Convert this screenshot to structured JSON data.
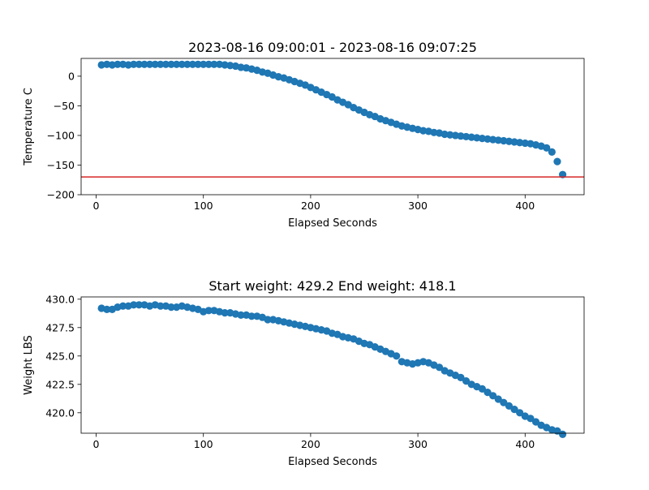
{
  "chart_data": [
    {
      "type": "scatter",
      "title": "2023-08-16 09:00:01 - 2023-08-16 09:07:25",
      "xlabel": "Elapsed Seconds",
      "ylabel": "Temperature C",
      "xlim": [
        -14,
        455
      ],
      "ylim": [
        -200,
        30
      ],
      "xticks": [
        0,
        100,
        200,
        300,
        400
      ],
      "xtick_labels": [
        "0",
        "100",
        "200",
        "300",
        "400"
      ],
      "yticks": [
        -200,
        -150,
        -100,
        -50,
        0
      ],
      "ytick_labels": [
        "−200",
        "−150",
        "−100",
        "−50",
        "0"
      ],
      "marker_color": "#1f77b4",
      "reference_line": {
        "y": -170,
        "color": "#d62728"
      },
      "points": [
        [
          5,
          19
        ],
        [
          10,
          20
        ],
        [
          15,
          19
        ],
        [
          20,
          20
        ],
        [
          25,
          20
        ],
        [
          30,
          19
        ],
        [
          35,
          20
        ],
        [
          40,
          20
        ],
        [
          45,
          20
        ],
        [
          50,
          20
        ],
        [
          55,
          20
        ],
        [
          60,
          20
        ],
        [
          65,
          20
        ],
        [
          70,
          20
        ],
        [
          75,
          20
        ],
        [
          80,
          20
        ],
        [
          85,
          20
        ],
        [
          90,
          20
        ],
        [
          95,
          20
        ],
        [
          100,
          20
        ],
        [
          105,
          20
        ],
        [
          110,
          20
        ],
        [
          115,
          20
        ],
        [
          120,
          19
        ],
        [
          125,
          18
        ],
        [
          130,
          17
        ],
        [
          135,
          15
        ],
        [
          140,
          14
        ],
        [
          145,
          12
        ],
        [
          150,
          10
        ],
        [
          155,
          7
        ],
        [
          160,
          5
        ],
        [
          165,
          2
        ],
        [
          170,
          -1
        ],
        [
          175,
          -3
        ],
        [
          180,
          -6
        ],
        [
          185,
          -9
        ],
        [
          190,
          -12
        ],
        [
          195,
          -15
        ],
        [
          200,
          -19
        ],
        [
          205,
          -23
        ],
        [
          210,
          -27
        ],
        [
          215,
          -31
        ],
        [
          220,
          -35
        ],
        [
          225,
          -40
        ],
        [
          230,
          -44
        ],
        [
          235,
          -48
        ],
        [
          240,
          -53
        ],
        [
          245,
          -57
        ],
        [
          250,
          -61
        ],
        [
          255,
          -65
        ],
        [
          260,
          -68
        ],
        [
          265,
          -72
        ],
        [
          270,
          -75
        ],
        [
          275,
          -78
        ],
        [
          280,
          -81
        ],
        [
          285,
          -84
        ],
        [
          290,
          -86
        ],
        [
          295,
          -88
        ],
        [
          300,
          -90
        ],
        [
          305,
          -92
        ],
        [
          310,
          -93
        ],
        [
          315,
          -95
        ],
        [
          320,
          -96
        ],
        [
          325,
          -98
        ],
        [
          330,
          -99
        ],
        [
          335,
          -100
        ],
        [
          340,
          -101
        ],
        [
          345,
          -102
        ],
        [
          350,
          -103
        ],
        [
          355,
          -104
        ],
        [
          360,
          -105
        ],
        [
          365,
          -106
        ],
        [
          370,
          -107
        ],
        [
          375,
          -108
        ],
        [
          380,
          -109
        ],
        [
          385,
          -110
        ],
        [
          390,
          -111
        ],
        [
          395,
          -112
        ],
        [
          400,
          -113
        ],
        [
          405,
          -114
        ],
        [
          410,
          -116
        ],
        [
          415,
          -118
        ],
        [
          420,
          -121
        ],
        [
          425,
          -128
        ],
        [
          430,
          -144
        ],
        [
          435,
          -166
        ]
      ]
    },
    {
      "type": "scatter",
      "title": "Start weight: 429.2 End weight: 418.1",
      "xlabel": "Elapsed Seconds",
      "ylabel": "Weight LBS",
      "xlim": [
        -14,
        455
      ],
      "ylim": [
        418.2,
        430.2
      ],
      "xticks": [
        0,
        100,
        200,
        300,
        400
      ],
      "xtick_labels": [
        "0",
        "100",
        "200",
        "300",
        "400"
      ],
      "yticks": [
        420.0,
        422.5,
        425.0,
        427.5,
        430.0
      ],
      "ytick_labels": [
        "420.0",
        "422.5",
        "425.0",
        "427.5",
        "430.0"
      ],
      "marker_color": "#1f77b4",
      "points": [
        [
          5,
          429.2
        ],
        [
          10,
          429.1
        ],
        [
          15,
          429.1
        ],
        [
          20,
          429.3
        ],
        [
          25,
          429.4
        ],
        [
          30,
          429.4
        ],
        [
          35,
          429.5
        ],
        [
          40,
          429.5
        ],
        [
          45,
          429.5
        ],
        [
          50,
          429.4
        ],
        [
          55,
          429.5
        ],
        [
          60,
          429.4
        ],
        [
          65,
          429.4
        ],
        [
          70,
          429.3
        ],
        [
          75,
          429.3
        ],
        [
          80,
          429.4
        ],
        [
          85,
          429.3
        ],
        [
          90,
          429.2
        ],
        [
          95,
          429.1
        ],
        [
          100,
          428.9
        ],
        [
          105,
          429.0
        ],
        [
          110,
          429.0
        ],
        [
          115,
          428.9
        ],
        [
          120,
          428.8
        ],
        [
          125,
          428.8
        ],
        [
          130,
          428.7
        ],
        [
          135,
          428.6
        ],
        [
          140,
          428.6
        ],
        [
          145,
          428.5
        ],
        [
          150,
          428.5
        ],
        [
          155,
          428.4
        ],
        [
          160,
          428.2
        ],
        [
          165,
          428.2
        ],
        [
          170,
          428.1
        ],
        [
          175,
          428.0
        ],
        [
          180,
          427.9
        ],
        [
          185,
          427.8
        ],
        [
          190,
          427.7
        ],
        [
          195,
          427.6
        ],
        [
          200,
          427.5
        ],
        [
          205,
          427.4
        ],
        [
          210,
          427.3
        ],
        [
          215,
          427.2
        ],
        [
          220,
          427.0
        ],
        [
          225,
          426.9
        ],
        [
          230,
          426.7
        ],
        [
          235,
          426.6
        ],
        [
          240,
          426.5
        ],
        [
          245,
          426.3
        ],
        [
          250,
          426.1
        ],
        [
          255,
          426.0
        ],
        [
          260,
          425.8
        ],
        [
          265,
          425.6
        ],
        [
          270,
          425.4
        ],
        [
          275,
          425.2
        ],
        [
          280,
          425.0
        ],
        [
          285,
          424.5
        ],
        [
          290,
          424.4
        ],
        [
          295,
          424.3
        ],
        [
          300,
          424.4
        ],
        [
          305,
          424.5
        ],
        [
          310,
          424.4
        ],
        [
          315,
          424.2
        ],
        [
          320,
          424.0
        ],
        [
          325,
          423.7
        ],
        [
          330,
          423.5
        ],
        [
          335,
          423.3
        ],
        [
          340,
          423.1
        ],
        [
          345,
          422.8
        ],
        [
          350,
          422.5
        ],
        [
          355,
          422.3
        ],
        [
          360,
          422.1
        ],
        [
          365,
          421.8
        ],
        [
          370,
          421.5
        ],
        [
          375,
          421.2
        ],
        [
          380,
          420.9
        ],
        [
          385,
          420.6
        ],
        [
          390,
          420.3
        ],
        [
          395,
          420.0
        ],
        [
          400,
          419.7
        ],
        [
          405,
          419.5
        ],
        [
          410,
          419.2
        ],
        [
          415,
          418.9
        ],
        [
          420,
          418.7
        ],
        [
          425,
          418.5
        ],
        [
          430,
          418.4
        ],
        [
          435,
          418.1
        ]
      ]
    }
  ]
}
